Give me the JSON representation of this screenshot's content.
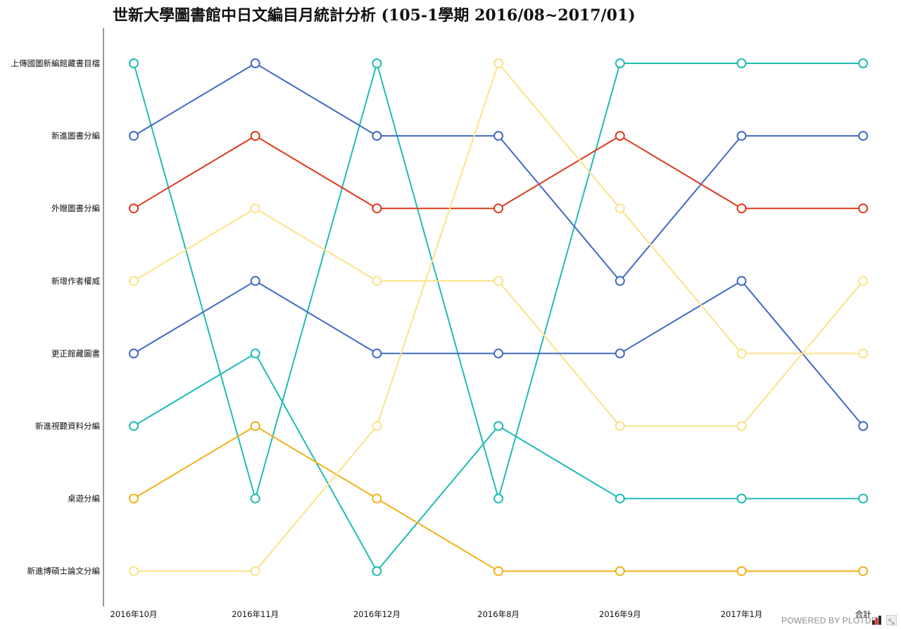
{
  "chart_data": {
    "type": "line",
    "title": "世新大學圖書館中日文編目月統計分析 (105-1學期 2016/08~2017/01)",
    "x": [
      "2016年10月",
      "2016年11月",
      "2016年12月",
      "2016年8月",
      "2016年9月",
      "2017年1月",
      "合計"
    ],
    "rank_labels": [
      "上傳國圖新編館藏書目檔",
      "新進圖書分編",
      "外贈圖書分編",
      "新增作者權威",
      "更正館藏圖書",
      "新進視聽資料分編",
      "桌遊分編",
      "新進博碩士論文分編"
    ],
    "series": [
      {
        "color": "#1fbcb4",
        "ranks": [
          1,
          7,
          1,
          7,
          1,
          1,
          1
        ]
      },
      {
        "color": "#4169c4",
        "ranks": [
          2,
          1,
          2,
          2,
          4,
          2,
          2
        ]
      },
      {
        "color": "#da3a1c",
        "ranks": [
          3,
          2,
          3,
          3,
          2,
          3,
          3
        ]
      },
      {
        "color": "#fae388",
        "ranks": [
          4,
          3,
          4,
          4,
          6,
          6,
          4
        ]
      },
      {
        "color": "#4169c4",
        "ranks": [
          5,
          4,
          5,
          5,
          5,
          4,
          6
        ]
      },
      {
        "color": "#1fbcb4",
        "ranks": [
          6,
          5,
          8,
          6,
          7,
          7,
          7
        ]
      },
      {
        "color": "#f2b21b",
        "ranks": [
          7,
          6,
          7,
          8,
          8,
          8,
          8
        ]
      },
      {
        "color": "#fae388",
        "ranks": [
          8,
          8,
          6,
          1,
          3,
          5,
          5
        ]
      }
    ],
    "grid": false,
    "legend": "none"
  },
  "footer": {
    "powered_by": "POWERED BY PLOTDB"
  }
}
